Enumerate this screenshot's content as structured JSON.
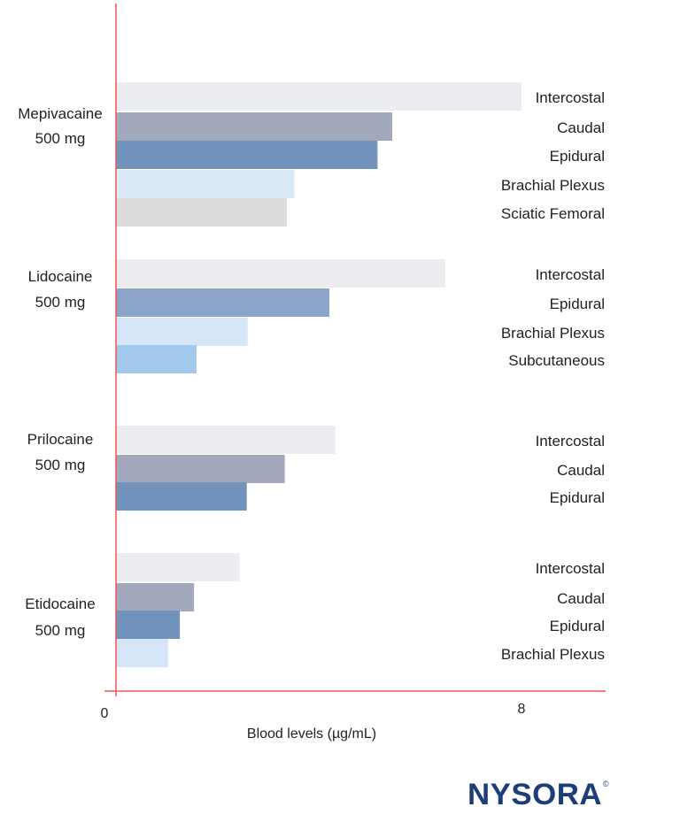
{
  "chart_data": {
    "type": "bar",
    "orientation": "horizontal",
    "xlabel": "Blood levels (µg/mL)",
    "xlim": [
      0,
      9.6
    ],
    "x_ticks": [
      "0",
      "8"
    ],
    "grid": false,
    "groups": [
      {
        "label_line1": "Mepivacaine",
        "label_line2": "500 mg",
        "bars": [
          {
            "route": "Intercostal",
            "value": 8.0,
            "color": "#ECEDF0"
          },
          {
            "route": "Caudal",
            "value": 5.45,
            "color": "#A3A9BC"
          },
          {
            "route": "Epidural",
            "value": 5.16,
            "color": "#7092BB"
          },
          {
            "route": "Brachial Plexus",
            "value": 3.52,
            "color": "#DCE9F9"
          },
          {
            "route": "Sciatic Femoral",
            "value": 3.37,
            "color": "#DCDCDC"
          }
        ]
      },
      {
        "label_line1": "Lidocaine",
        "label_line2": "500 mg",
        "bars": [
          {
            "route": "Intercostal",
            "value": 6.5,
            "color": "#ECEDF0"
          },
          {
            "route": "Epidural",
            "value": 4.21,
            "color": "#8CA4C8"
          },
          {
            "route": "Brachial Plexus",
            "value": 2.6,
            "color": "#D6E6F8"
          },
          {
            "route": "Subcutaneous",
            "value": 1.59,
            "color": "#A3CAEC"
          }
        ]
      },
      {
        "label_line1": "Prilocaine",
        "label_line2": "500 mg",
        "bars": [
          {
            "route": "Intercostal",
            "value": 4.33,
            "color": "#ECEDF0"
          },
          {
            "route": "Caudal",
            "value": 3.33,
            "color": "#A3A9BC"
          },
          {
            "route": "Epidural",
            "value": 2.58,
            "color": "#7092BB"
          }
        ]
      },
      {
        "label_line1": "Etidocaine",
        "label_line2": "500 mg",
        "bars": [
          {
            "route": "Intercostal",
            "value": 2.44,
            "color": "#ECEDF0"
          },
          {
            "route": "Caudal",
            "value": 1.54,
            "color": "#A3A9BC"
          },
          {
            "route": "Epidural",
            "value": 1.26,
            "color": "#7092BB"
          },
          {
            "route": "Brachial Plexus",
            "value": 1.03,
            "color": "#D6E6F8"
          }
        ]
      }
    ],
    "axis_color": "#E8594F"
  },
  "logo": {
    "text": "NYSORA",
    "mark": "©",
    "color": "#1C3D7A"
  }
}
